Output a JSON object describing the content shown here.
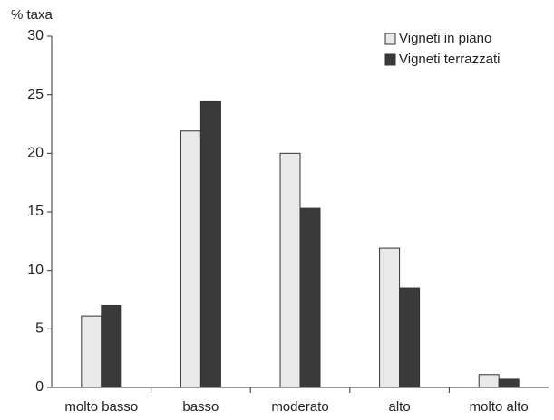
{
  "chart_data": {
    "type": "bar",
    "y_label": "% taxa",
    "categories": [
      "molto basso",
      "basso",
      "moderato",
      "alto",
      "molto alto"
    ],
    "series": [
      {
        "name": "Vigneti in piano",
        "color": "#e9e9e9",
        "values": [
          6.1,
          21.9,
          20.0,
          11.9,
          1.1
        ]
      },
      {
        "name": "Vigneti terrazzati",
        "color": "#3a3a3a",
        "values": [
          7.0,
          24.4,
          15.3,
          8.5,
          0.7
        ]
      }
    ],
    "ylim": [
      0,
      30
    ],
    "yticks": [
      0,
      5,
      10,
      15,
      20,
      25,
      30
    ],
    "legend": "upper right"
  }
}
